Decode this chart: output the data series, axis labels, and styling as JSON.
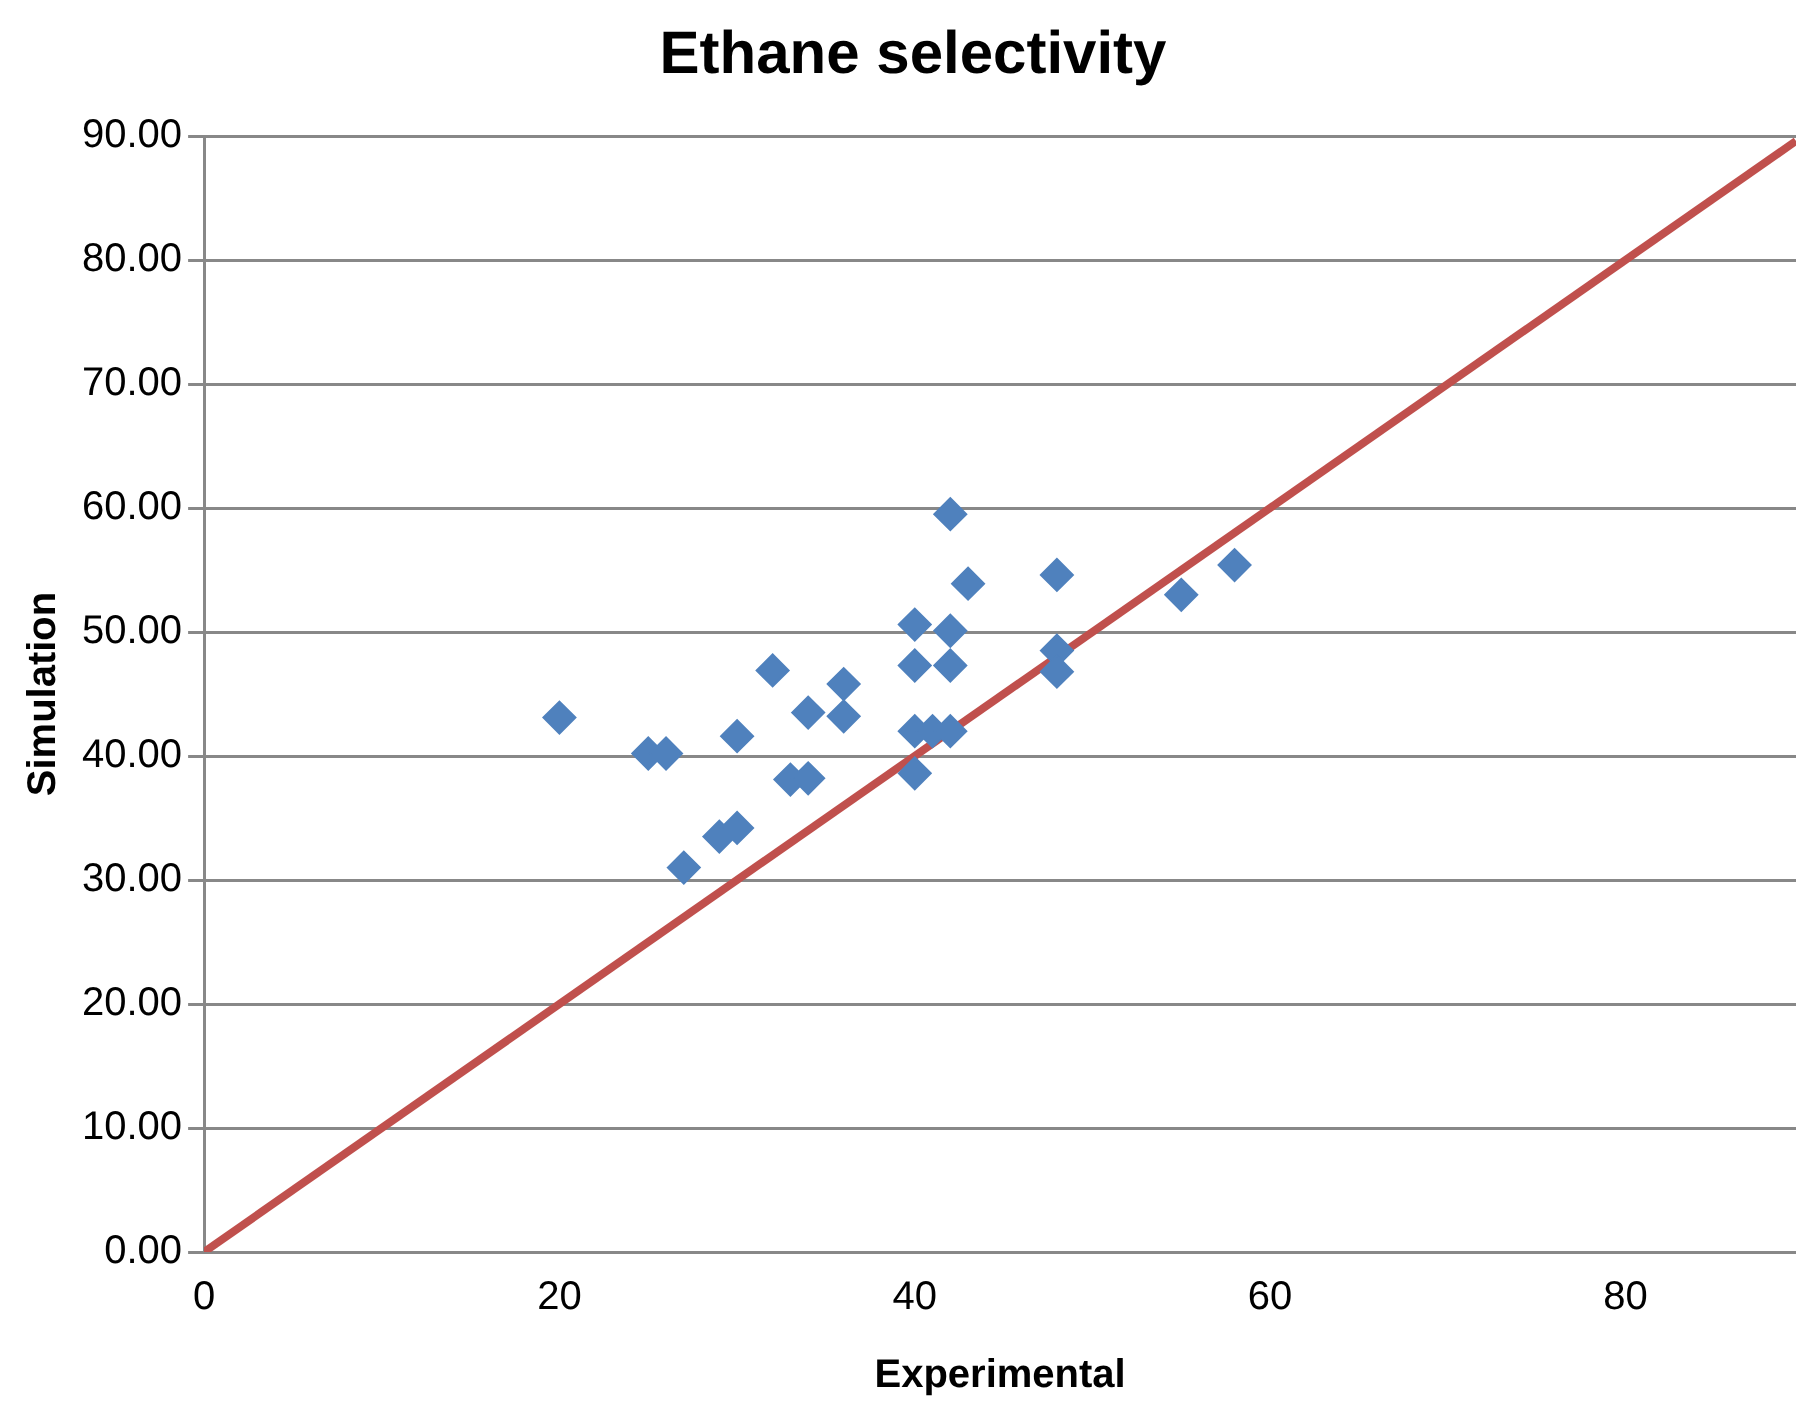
{
  "chart_data": {
    "type": "scatter",
    "title": "Ethane selectivity",
    "xlabel": "Experimental",
    "ylabel": "Simulation",
    "xlim": [
      0,
      89.6
    ],
    "xticks": [
      0,
      20,
      40,
      60,
      80
    ],
    "ylim": [
      0,
      90
    ],
    "yticks": [
      {
        "value": 0,
        "label": "0.00"
      },
      {
        "value": 10,
        "label": "10.00"
      },
      {
        "value": 20,
        "label": "20.00"
      },
      {
        "value": 30,
        "label": "30.00"
      },
      {
        "value": 40,
        "label": "40.00"
      },
      {
        "value": 50,
        "label": "50.00"
      },
      {
        "value": 60,
        "label": "60.00"
      },
      {
        "value": 70,
        "label": "70.00"
      },
      {
        "value": 80,
        "label": "80.00"
      },
      {
        "value": 90,
        "label": "90.00"
      }
    ],
    "grid": "y",
    "legend": false,
    "series": [
      {
        "type": "line",
        "color": "#c0504d",
        "marker": "none",
        "x": [
          0,
          89.6
        ],
        "values": [
          0,
          89.6
        ]
      },
      {
        "color": "#4f81bd",
        "marker": "diamond",
        "x": [
          20,
          25,
          26,
          27,
          29,
          30,
          30,
          32,
          33,
          34,
          34,
          36,
          36,
          40,
          40,
          40,
          40,
          41,
          42,
          42,
          42,
          42,
          43,
          48,
          48,
          48,
          55,
          58
        ],
        "values": [
          43.1,
          40.2,
          40.2,
          31,
          33.5,
          34.2,
          41.6,
          46.9,
          38.1,
          38.2,
          43.5,
          45.8,
          43.2,
          50.6,
          47.3,
          42,
          38.6,
          42,
          42,
          59.5,
          50.1,
          47.3,
          53.9,
          54.6,
          48.5,
          46.8,
          53,
          55.4
        ]
      }
    ]
  }
}
